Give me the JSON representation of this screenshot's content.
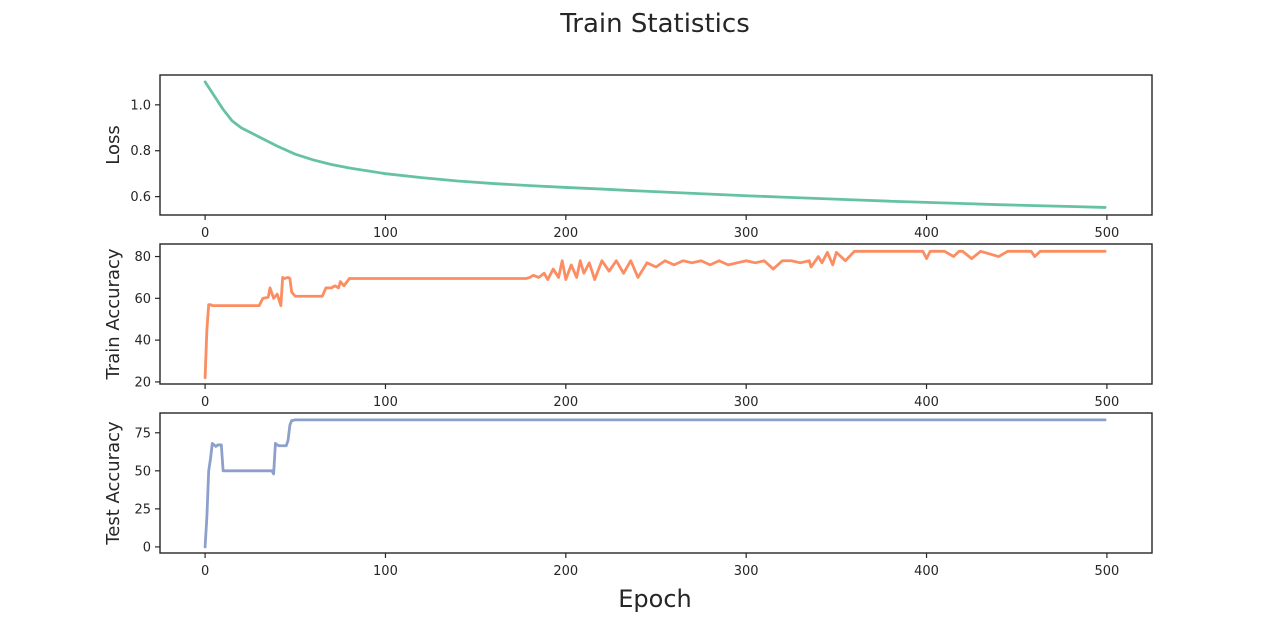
{
  "chart_data": {
    "type": "line",
    "title": "Train Statistics",
    "xlabel": "Epoch",
    "grid": false,
    "panels": [
      {
        "ylabel": "Loss",
        "xlim": [
          -25,
          525
        ],
        "ylim": [
          0.52,
          1.13
        ],
        "xticks": [
          0,
          100,
          200,
          300,
          400,
          500
        ],
        "yticks": [
          0.6,
          0.8,
          1.0
        ],
        "ytick_labels": [
          "0.6",
          "0.8",
          "1.0"
        ],
        "color": "#66c2a5",
        "series": [
          {
            "x": [
              0,
              5,
              10,
              15,
              20,
              25,
              30,
              40,
              50,
              60,
              70,
              80,
              100,
              120,
              140,
              160,
              180,
              200,
              220,
              240,
              260,
              280,
              300,
              320,
              340,
              360,
              380,
              400,
              420,
              440,
              460,
              480,
              499
            ],
            "y": [
              1.1,
              1.04,
              0.98,
              0.93,
              0.9,
              0.88,
              0.86,
              0.82,
              0.785,
              0.76,
              0.74,
              0.725,
              0.7,
              0.683,
              0.668,
              0.657,
              0.648,
              0.64,
              0.633,
              0.625,
              0.618,
              0.611,
              0.604,
              0.598,
              0.592,
              0.586,
              0.58,
              0.575,
              0.57,
              0.565,
              0.561,
              0.557,
              0.553
            ]
          }
        ]
      },
      {
        "ylabel": "Train Accuracy",
        "xlim": [
          -25,
          525
        ],
        "ylim": [
          19,
          86
        ],
        "xticks": [
          0,
          100,
          200,
          300,
          400,
          500
        ],
        "yticks": [
          20,
          40,
          60,
          80
        ],
        "ytick_labels": [
          "20",
          "40",
          "60",
          "80"
        ],
        "color": "#fc8d62",
        "series": [
          {
            "x": [
              0,
              1,
              2,
              3,
              4,
              8,
              15,
              25,
              30,
              32,
              35,
              36,
              38,
              40,
              42,
              43,
              44,
              46,
              47,
              48,
              50,
              55,
              60,
              65,
              67,
              70,
              72,
              74,
              75,
              77,
              80,
              100,
              120,
              150,
              178,
              180,
              182,
              185,
              188,
              190,
              193,
              196,
              198,
              200,
              203,
              206,
              208,
              210,
              213,
              216,
              220,
              224,
              228,
              232,
              236,
              240,
              245,
              250,
              255,
              260,
              265,
              270,
              275,
              280,
              285,
              290,
              295,
              300,
              305,
              310,
              315,
              320,
              325,
              330,
              335,
              336,
              340,
              342,
              345,
              348,
              350,
              355,
              360,
              380,
              398,
              400,
              402,
              410,
              415,
              418,
              420,
              425,
              430,
              440,
              445,
              450,
              458,
              460,
              463,
              470,
              480,
              499
            ],
            "y": [
              22,
              45,
              57,
              57,
              56.5,
              56.5,
              56.5,
              56.5,
              56.5,
              60,
              60.5,
              65,
              60,
              62,
              56.5,
              70,
              69.5,
              70,
              69.5,
              63,
              61,
              61,
              61,
              61,
              65,
              65,
              66,
              65,
              68,
              66,
              69.5,
              69.5,
              69.5,
              69.5,
              69.5,
              70,
              71,
              70,
              72,
              69,
              74,
              70,
              78,
              69,
              76,
              70,
              78,
              72,
              77,
              69,
              78,
              73,
              78,
              72,
              78,
              70,
              77,
              75,
              78,
              76,
              78,
              77,
              78,
              76,
              78,
              76,
              77,
              78,
              77,
              78,
              74,
              78,
              78,
              77,
              78,
              75,
              80,
              77,
              82,
              76,
              82,
              78,
              82.5,
              82.5,
              82.5,
              79,
              82.5,
              82.5,
              80,
              82.5,
              82.5,
              79,
              82.5,
              80,
              82.5,
              82.5,
              82.5,
              80,
              82.5,
              82.5,
              82.5,
              82.5
            ]
          }
        ]
      },
      {
        "ylabel": "Test Accuracy",
        "xlim": [
          -25,
          525
        ],
        "ylim": [
          -4,
          88
        ],
        "xticks": [
          0,
          100,
          200,
          300,
          400,
          500
        ],
        "yticks": [
          0,
          25,
          50,
          75
        ],
        "ytick_labels": [
          "0",
          "25",
          "50",
          "75"
        ],
        "color": "#8da0cb",
        "series": [
          {
            "x": [
              0,
              1,
              2,
              3,
              4,
              5,
              6,
              7,
              8,
              9,
              10,
              15,
              20,
              30,
              37,
              38,
              39,
              40,
              41,
              42,
              45,
              46,
              47,
              48,
              50,
              100,
              200,
              300,
              400,
              499
            ],
            "y": [
              0,
              20,
              50,
              58,
              68,
              67,
              66,
              67,
              67,
              67,
              50,
              50,
              50,
              50,
              50,
              48,
              68,
              67,
              66.5,
              66.5,
              66.5,
              70,
              80,
              83,
              83.5,
              83.5,
              83.5,
              83.5,
              83.5,
              83.5
            ]
          }
        ]
      }
    ]
  }
}
